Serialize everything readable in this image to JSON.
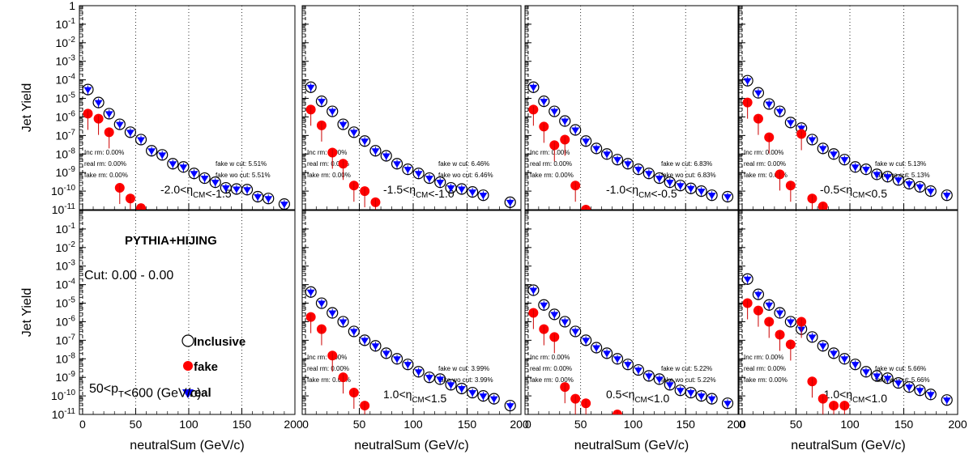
{
  "chart_data": {
    "type": "scatter",
    "layout": "2x4 grid of log-scale panels",
    "y_axis_label": "Jet Yield",
    "x_axis_label": "neutralSum (GeV/c)",
    "ylim": [
      1e-11,
      1
    ],
    "y_tick_labels": [
      "1",
      "10-1",
      "10-2",
      "10-3",
      "10-4",
      "10-5",
      "10-6",
      "10-7",
      "10-8",
      "10-9",
      "10-10",
      "10-11"
    ],
    "legend": {
      "title": "PYTHIA+HIJING",
      "cut": "Cut: 0.00 - 0.00",
      "entries": [
        "Inclusive",
        "fake",
        "real"
      ],
      "pt_range": "50<p_T<600 (GeV/c)"
    },
    "colors": {
      "inclusive": "#000000",
      "fake": "#ff0000",
      "real": "#0000ff"
    },
    "panels": [
      {
        "row": 0,
        "col": 0,
        "eta_label": "-2.0<η_CM<-1.5",
        "x_ticks": [
          0,
          50,
          100,
          150,
          200
        ],
        "xlim": [
          -3,
          200
        ],
        "stats": {
          "inc_rm": "Inc rm: 0.00%",
          "real_rm": "real rm: 0.00%",
          "fake_rm": "fake rm: 0.00%",
          "fake_w_cut": "fake w cut: 5.51%",
          "fake_wo_cut": "fake wo cut: 5.51%"
        },
        "inclusive": [
          [
            5,
            3e-05
          ],
          [
            15,
            6e-06
          ],
          [
            25,
            1.5e-06
          ],
          [
            35,
            4e-07
          ],
          [
            45,
            1.5e-07
          ],
          [
            55,
            6e-08
          ],
          [
            65,
            1.5e-08
          ],
          [
            75,
            9e-09
          ],
          [
            85,
            3e-09
          ],
          [
            95,
            2e-09
          ],
          [
            105,
            9e-10
          ],
          [
            115,
            5e-10
          ],
          [
            125,
            3e-10
          ],
          [
            135,
            1.5e-10
          ],
          [
            145,
            1.3e-10
          ],
          [
            155,
            1.2e-10
          ],
          [
            165,
            5e-11
          ],
          [
            175,
            4e-11
          ],
          [
            190,
            2e-11
          ]
        ],
        "fake": [
          [
            5,
            1.5e-06
          ],
          [
            15,
            8e-07
          ],
          [
            25,
            1.5e-07
          ],
          [
            35,
            1.5e-10
          ],
          [
            45,
            4e-11
          ],
          [
            55,
            1.2e-11
          ]
        ]
      },
      {
        "row": 0,
        "col": 1,
        "eta_label": "-1.5<η_CM<-1.0",
        "x_ticks": [
          0,
          50,
          100,
          150,
          200
        ],
        "xlim": [
          -3,
          200
        ],
        "stats": {
          "inc_rm": "Inc rm: 0.00%",
          "real_rm": "real rm: 0.00%",
          "fake_rm": "fake rm: 0.00%",
          "fake_w_cut": "fake w cut: 6.46%",
          "fake_wo_cut": "fake wo cut: 6.46%"
        },
        "inclusive": [
          [
            5,
            4e-05
          ],
          [
            15,
            7e-06
          ],
          [
            25,
            2e-06
          ],
          [
            35,
            4e-07
          ],
          [
            45,
            1.5e-07
          ],
          [
            55,
            5e-08
          ],
          [
            65,
            1.5e-08
          ],
          [
            75,
            8e-09
          ],
          [
            85,
            3e-09
          ],
          [
            95,
            1.5e-09
          ],
          [
            105,
            9e-10
          ],
          [
            115,
            5e-10
          ],
          [
            125,
            3e-10
          ],
          [
            135,
            1.5e-10
          ],
          [
            145,
            1.3e-10
          ],
          [
            155,
            9e-11
          ],
          [
            165,
            6e-11
          ],
          [
            190,
            2.5e-11
          ]
        ],
        "fake": [
          [
            5,
            2.5e-06
          ],
          [
            15,
            3.5e-07
          ],
          [
            25,
            1.2e-08
          ],
          [
            35,
            3e-09
          ],
          [
            45,
            2e-10
          ],
          [
            55,
            1e-10
          ],
          [
            65,
            2.5e-11
          ]
        ]
      },
      {
        "row": 0,
        "col": 2,
        "eta_label": "-1.0<η_CM<-0.5",
        "x_ticks": [
          0,
          50,
          100,
          150,
          200
        ],
        "xlim": [
          -3,
          200
        ],
        "stats": {
          "inc_rm": "Inc rm: 0.00%",
          "real_rm": "real rm: 0.00%",
          "fake_rm": "fake rm: 0.00%",
          "fake_w_cut": "fake w cut: 6.83%",
          "fake_wo_cut": "fake wo cut: 6.83%"
        },
        "inclusive": [
          [
            5,
            4e-05
          ],
          [
            15,
            7e-06
          ],
          [
            25,
            2e-06
          ],
          [
            35,
            6e-07
          ],
          [
            45,
            2e-07
          ],
          [
            55,
            5e-08
          ],
          [
            65,
            2e-08
          ],
          [
            75,
            1e-08
          ],
          [
            85,
            5e-09
          ],
          [
            95,
            3e-09
          ],
          [
            105,
            1.5e-09
          ],
          [
            115,
            9e-10
          ],
          [
            125,
            5e-10
          ],
          [
            135,
            3e-10
          ],
          [
            145,
            2e-10
          ],
          [
            155,
            1.4e-10
          ],
          [
            165,
            1e-10
          ],
          [
            175,
            6e-11
          ],
          [
            190,
            5e-11
          ]
        ],
        "fake": [
          [
            5,
            2.5e-06
          ],
          [
            15,
            3e-07
          ],
          [
            25,
            3e-08
          ],
          [
            35,
            6e-08
          ],
          [
            45,
            2e-10
          ],
          [
            55,
            1e-11
          ]
        ]
      },
      {
        "row": 0,
        "col": 3,
        "eta_label": "-0.5<η_CM<0.5",
        "x_ticks": [
          0,
          50,
          100,
          150,
          200
        ],
        "xlim": [
          -3,
          200
        ],
        "stats": {
          "inc_rm": "Inc rm: 0.00%",
          "real_rm": "real rm: 0.00%",
          "fake_rm": "fake rm: 0.00%",
          "fake_w_cut": "fake w cut: 5.13%",
          "fake_wo_cut": "fake wo cut: 5.13%"
        },
        "inclusive": [
          [
            5,
            9e-05
          ],
          [
            15,
            2e-05
          ],
          [
            25,
            5e-06
          ],
          [
            35,
            2e-06
          ],
          [
            45,
            5e-07
          ],
          [
            55,
            2.5e-07
          ],
          [
            65,
            6e-08
          ],
          [
            75,
            2e-08
          ],
          [
            85,
            1e-08
          ],
          [
            95,
            5e-09
          ],
          [
            105,
            2e-09
          ],
          [
            115,
            1.5e-09
          ],
          [
            125,
            8e-10
          ],
          [
            135,
            6e-10
          ],
          [
            145,
            4e-10
          ],
          [
            155,
            2.5e-10
          ],
          [
            165,
            1.7e-10
          ],
          [
            175,
            1e-10
          ],
          [
            190,
            6e-11
          ]
        ],
        "fake": [
          [
            5,
            6e-06
          ],
          [
            15,
            8e-07
          ],
          [
            25,
            8e-08
          ],
          [
            35,
            8e-10
          ],
          [
            45,
            2e-10
          ],
          [
            55,
            1.2e-07
          ],
          [
            65,
            4e-11
          ],
          [
            75,
            1.5e-11
          ]
        ]
      },
      {
        "row": 1,
        "col": 0,
        "legend_panel": true,
        "x_ticks": [
          0,
          50,
          100,
          150,
          200
        ],
        "xlim": [
          -3,
          200
        ]
      },
      {
        "row": 1,
        "col": 1,
        "eta_label": "1.0<η_CM<1.5",
        "x_ticks": [
          0,
          50,
          100,
          150,
          200
        ],
        "xlim": [
          -3,
          200
        ],
        "stats": {
          "inc_rm": "Inc rm: 0.00%",
          "real_rm": "real rm: 0.00%",
          "fake_rm": "fake rm: 0.00%",
          "fake_w_cut": "fake w cut: 3.99%",
          "fake_wo_cut": "fake wo cut: 3.99%"
        },
        "inclusive": [
          [
            5,
            4e-05
          ],
          [
            15,
            1e-05
          ],
          [
            25,
            3e-06
          ],
          [
            35,
            1e-06
          ],
          [
            45,
            3e-07
          ],
          [
            55,
            1e-07
          ],
          [
            65,
            5e-08
          ],
          [
            75,
            2e-08
          ],
          [
            85,
            1e-08
          ],
          [
            95,
            5e-09
          ],
          [
            105,
            2e-09
          ],
          [
            115,
            1e-09
          ],
          [
            125,
            8e-10
          ],
          [
            135,
            4e-10
          ],
          [
            145,
            2.5e-10
          ],
          [
            155,
            1.5e-10
          ],
          [
            165,
            1e-10
          ],
          [
            175,
            7e-11
          ],
          [
            190,
            3e-11
          ]
        ],
        "fake": [
          [
            5,
            1.8e-06
          ],
          [
            15,
            4e-07
          ],
          [
            25,
            1.5e-08
          ],
          [
            35,
            1e-09
          ],
          [
            45,
            1.5e-10
          ],
          [
            55,
            3e-11
          ]
        ]
      },
      {
        "row": 1,
        "col": 2,
        "eta_label": "0.5<η_CM<1.0",
        "x_ticks": [
          0,
          50,
          100,
          150,
          200
        ],
        "xlim": [
          -3,
          200
        ],
        "stats": {
          "inc_rm": "Inc rm: 0.00%",
          "real_rm": "real rm: 0.00%",
          "fake_rm": "fake rm: 0.00%",
          "fake_w_cut": "fake w cut: 5.22%",
          "fake_wo_cut": "fake wo cut: 5.22%"
        },
        "inclusive": [
          [
            5,
            5e-05
          ],
          [
            15,
            8e-06
          ],
          [
            25,
            2.5e-06
          ],
          [
            35,
            1e-06
          ],
          [
            45,
            3e-07
          ],
          [
            55,
            1e-07
          ],
          [
            65,
            4e-08
          ],
          [
            75,
            2e-08
          ],
          [
            85,
            1e-08
          ],
          [
            95,
            5e-09
          ],
          [
            105,
            2.5e-09
          ],
          [
            115,
            1.2e-09
          ],
          [
            125,
            8e-10
          ],
          [
            135,
            4e-10
          ],
          [
            145,
            2e-10
          ],
          [
            155,
            1.5e-10
          ],
          [
            165,
            1e-10
          ],
          [
            175,
            7e-11
          ],
          [
            190,
            4e-11
          ]
        ],
        "fake": [
          [
            5,
            3e-06
          ],
          [
            15,
            4e-07
          ],
          [
            25,
            1.5e-07
          ],
          [
            35,
            3e-10
          ],
          [
            45,
            7e-11
          ],
          [
            55,
            4e-11
          ],
          [
            85,
            1e-11
          ]
        ]
      },
      {
        "row": 1,
        "col": 3,
        "eta_label": "-1.0<η_CM<1.0",
        "x_ticks": [
          0,
          50,
          100,
          150,
          200
        ],
        "xlim": [
          -3,
          200
        ],
        "stats": {
          "inc_rm": "Inc rm: 0.00%",
          "real_rm": "real rm: 0.00%",
          "fake_rm": "fake rm: 0.00%",
          "fake_w_cut": "fake w cut: 5.66%",
          "fake_wo_cut": "fake wo cut: 5.66%"
        },
        "inclusive": [
          [
            5,
            0.0002
          ],
          [
            15,
            3e-05
          ],
          [
            25,
            8e-06
          ],
          [
            35,
            3e-06
          ],
          [
            45,
            1e-06
          ],
          [
            55,
            4e-07
          ],
          [
            65,
            1.5e-07
          ],
          [
            75,
            5e-08
          ],
          [
            85,
            2e-08
          ],
          [
            95,
            1e-08
          ],
          [
            105,
            5e-09
          ],
          [
            115,
            2e-09
          ],
          [
            125,
            1.2e-09
          ],
          [
            135,
            9e-10
          ],
          [
            145,
            5e-10
          ],
          [
            155,
            3e-10
          ],
          [
            165,
            2e-10
          ],
          [
            175,
            1.2e-10
          ],
          [
            190,
            6e-11
          ]
        ],
        "fake": [
          [
            5,
            1e-05
          ],
          [
            15,
            4e-06
          ],
          [
            25,
            1e-06
          ],
          [
            35,
            2e-07
          ],
          [
            45,
            6e-08
          ],
          [
            55,
            1e-06
          ],
          [
            65,
            6e-10
          ],
          [
            75,
            7e-11
          ],
          [
            85,
            3e-11
          ],
          [
            95,
            3e-11
          ]
        ]
      }
    ]
  }
}
